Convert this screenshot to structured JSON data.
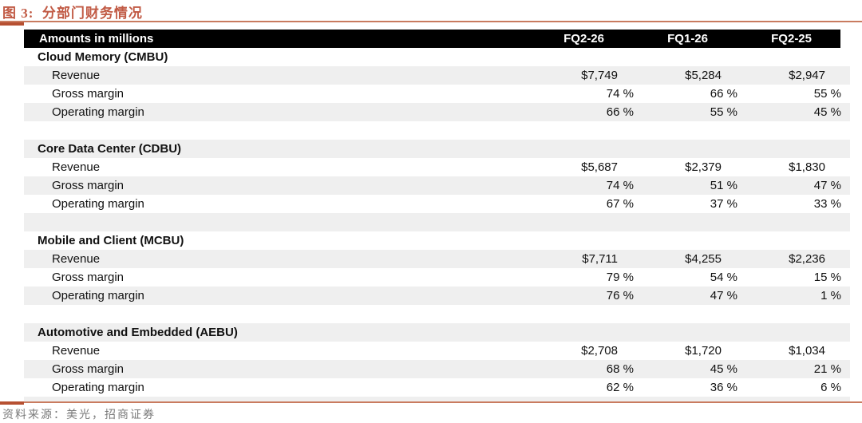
{
  "figure": {
    "title": "图 3:  分部门财务情况",
    "source": "资料来源：美光，招商证券"
  },
  "colors": {
    "accent_title": "#C15A44",
    "rule": "#C97B5F",
    "rule_tab": "#B65031",
    "stripe": "#EFEFEF",
    "header_bg": "#000000",
    "header_text": "#FFFFFF",
    "body_text": "#111111",
    "source_text": "#7A7A7A"
  },
  "table": {
    "header": {
      "label": "Amounts in millions",
      "columns": [
        "FQ2-26",
        "FQ1-26",
        "FQ2-25"
      ]
    },
    "sections": [
      {
        "name": "Cloud Memory (CMBU)",
        "rows": [
          {
            "label": "Revenue",
            "format": "currency",
            "values": [
              "$7,749",
              "$5,284",
              "$2,947"
            ]
          },
          {
            "label": "Gross margin",
            "format": "percent",
            "values": [
              "74 %",
              "66 %",
              "55 %"
            ]
          },
          {
            "label": "Operating margin",
            "format": "percent",
            "values": [
              "66 %",
              "55 %",
              "45 %"
            ]
          }
        ]
      },
      {
        "name": "Core Data Center (CDBU)",
        "rows": [
          {
            "label": "Revenue",
            "format": "currency",
            "values": [
              "$5,687",
              "$2,379",
              "$1,830"
            ]
          },
          {
            "label": "Gross margin",
            "format": "percent",
            "values": [
              "74 %",
              "51 %",
              "47 %"
            ]
          },
          {
            "label": "Operating margin",
            "format": "percent",
            "values": [
              "67 %",
              "37 %",
              "33 %"
            ]
          }
        ]
      },
      {
        "name": "Mobile and Client (MCBU)",
        "rows": [
          {
            "label": "Revenue",
            "format": "currency",
            "values": [
              "$7,711",
              "$4,255",
              "$2,236"
            ]
          },
          {
            "label": "Gross margin",
            "format": "percent",
            "values": [
              "79 %",
              "54 %",
              "15 %"
            ]
          },
          {
            "label": "Operating margin",
            "format": "percent",
            "values": [
              "76 %",
              "47 %",
              "1 %"
            ]
          }
        ]
      },
      {
        "name": "Automotive and Embedded (AEBU)",
        "rows": [
          {
            "label": "Revenue",
            "format": "currency",
            "values": [
              "$2,708",
              "$1,720",
              "$1,034"
            ]
          },
          {
            "label": "Gross margin",
            "format": "percent",
            "values": [
              "68 %",
              "45 %",
              "21 %"
            ]
          },
          {
            "label": "Operating margin",
            "format": "percent",
            "values": [
              "62 %",
              "36 %",
              "6 %"
            ]
          }
        ]
      }
    ]
  }
}
